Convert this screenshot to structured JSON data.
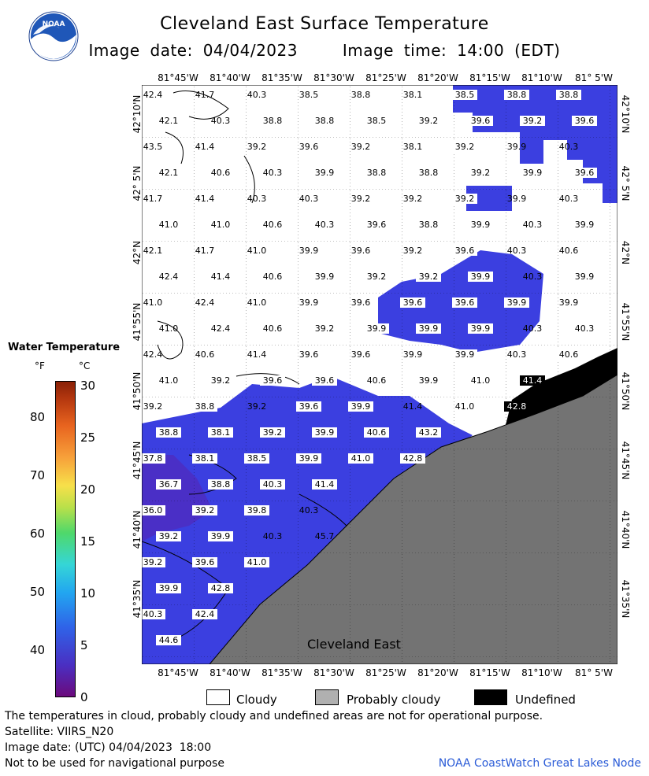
{
  "header": {
    "title": "Cleveland East Surface Temperature",
    "image_date": "Image date: 04/04/2023",
    "image_time": "Image time: 14:00 (EDT)"
  },
  "logo": {
    "text": "NOAA"
  },
  "map": {
    "region_label": "Cleveland East",
    "lon_ticks": [
      "81°45'W",
      "81°40'W",
      "81°35'W",
      "81°30'W",
      "81°25'W",
      "81°20'W",
      "81°15'W",
      "81°10'W",
      "81° 5'W"
    ],
    "lat_ticks": [
      "42°10'N",
      "42° 5'N",
      "42°N",
      "41°55'N",
      "41°50'N",
      "41°45'N",
      "41°40'N",
      "41°35'N"
    ],
    "colors": {
      "water": "#3b3fe0",
      "land": "#737373",
      "cloud": "#ffffff",
      "undefined": "#000000"
    },
    "temperatures": [
      {
        "v": "42.4"
      },
      {
        "v": "41.7"
      },
      {
        "v": "40.3"
      },
      {
        "v": "38.5"
      },
      {
        "v": "38.8"
      },
      {
        "v": "38.1"
      },
      {
        "v": "38.5",
        "box": 1
      },
      {
        "v": "38.8",
        "box": 1
      },
      {
        "v": "38.8",
        "box": 1
      },
      {
        "v": "42.1"
      },
      {
        "v": "40.3"
      },
      {
        "v": "38.8"
      },
      {
        "v": "38.8"
      },
      {
        "v": "38.5"
      },
      {
        "v": "39.2"
      },
      {
        "v": "39.6",
        "box": 1
      },
      {
        "v": "39.2",
        "box": 1
      },
      {
        "v": "39.6",
        "box": 1
      },
      {
        "v": "43.5"
      },
      {
        "v": "41.4"
      },
      {
        "v": "39.2"
      },
      {
        "v": "39.6"
      },
      {
        "v": "39.2"
      },
      {
        "v": "38.1"
      },
      {
        "v": "39.2",
        "box": 1
      },
      {
        "v": "39.9"
      },
      {
        "v": "40.3"
      },
      {
        "v": "42.1"
      },
      {
        "v": "40.6"
      },
      {
        "v": "40.3"
      },
      {
        "v": "39.9"
      },
      {
        "v": "38.8"
      },
      {
        "v": "38.8"
      },
      {
        "v": "39.2"
      },
      {
        "v": "39.9"
      },
      {
        "v": "39.6",
        "box": 1
      },
      {
        "v": "41.7"
      },
      {
        "v": "41.4"
      },
      {
        "v": "40.3"
      },
      {
        "v": "40.3"
      },
      {
        "v": "39.2"
      },
      {
        "v": "39.2"
      },
      {
        "v": "39.2",
        "box": 1
      },
      {
        "v": "39.9"
      },
      {
        "v": "40.3"
      },
      {
        "v": "41.0"
      },
      {
        "v": "41.0"
      },
      {
        "v": "40.6"
      },
      {
        "v": "40.3"
      },
      {
        "v": "39.6"
      },
      {
        "v": "38.8"
      },
      {
        "v": "39.9"
      },
      {
        "v": "40.3"
      },
      {
        "v": "39.9"
      },
      {
        "v": "42.1"
      },
      {
        "v": "41.7"
      },
      {
        "v": "41.0"
      },
      {
        "v": "39.9"
      },
      {
        "v": "39.6"
      },
      {
        "v": "39.2"
      },
      {
        "v": "39.6",
        "box": 1
      },
      {
        "v": "40.3"
      },
      {
        "v": "40.6"
      },
      {
        "v": "42.4"
      },
      {
        "v": "41.4"
      },
      {
        "v": "40.6"
      },
      {
        "v": "39.9"
      },
      {
        "v": "39.2",
        "box": 1
      },
      {
        "v": "39.2",
        "box": 1
      },
      {
        "v": "39.9",
        "box": 1
      },
      {
        "v": "40.3"
      },
      {
        "v": "39.9"
      },
      {
        "v": "41.0"
      },
      {
        "v": "42.4"
      },
      {
        "v": "41.0"
      },
      {
        "v": "39.9"
      },
      {
        "v": "39.6"
      },
      {
        "v": "39.6",
        "box": 1
      },
      {
        "v": "39.6",
        "box": 1
      },
      {
        "v": "39.9",
        "box": 1
      },
      {
        "v": "39.9"
      },
      {
        "v": "41.0"
      },
      {
        "v": "42.4"
      },
      {
        "v": "40.6"
      },
      {
        "v": "39.2"
      },
      {
        "v": "39.9",
        "box": 1
      },
      {
        "v": "39.9",
        "box": 1
      },
      {
        "v": "39.9",
        "box": 1
      },
      {
        "v": "40.3"
      },
      {
        "v": "40.3"
      },
      {
        "v": "42.4"
      },
      {
        "v": "40.6"
      },
      {
        "v": "41.4"
      },
      {
        "v": "39.6"
      },
      {
        "v": "39.6"
      },
      {
        "v": "39.9"
      },
      {
        "v": "39.9",
        "box": 1
      },
      {
        "v": "40.3"
      },
      {
        "v": "40.6",
        "box": 1
      },
      {
        "v": "41.0"
      },
      {
        "v": "39.2"
      },
      {
        "v": "39.6",
        "box": 1
      },
      {
        "v": "39.6",
        "box": 1
      },
      {
        "v": "40.6",
        "box": 1
      },
      {
        "v": "39.9"
      },
      {
        "v": "41.0"
      },
      {
        "v": "41.4",
        "box": 2
      },
      {
        "v": "39.2"
      },
      {
        "v": "38.8",
        "box": 1
      },
      {
        "v": "39.2"
      },
      {
        "v": "39.6",
        "box": 1
      },
      {
        "v": "39.9",
        "box": 1
      },
      {
        "v": "41.4"
      },
      {
        "v": "41.0"
      },
      {
        "v": "42.8",
        "box": 2
      },
      {
        "v": "38.8",
        "box": 1
      },
      {
        "v": "38.1",
        "box": 1
      },
      {
        "v": "39.2",
        "box": 1
      },
      {
        "v": "39.9",
        "box": 1
      },
      {
        "v": "40.6",
        "box": 1
      },
      {
        "v": "43.2",
        "box": 1
      },
      {
        "v": "37.8",
        "box": 1
      },
      {
        "v": "38.1",
        "box": 1
      },
      {
        "v": "38.5",
        "box": 1
      },
      {
        "v": "39.9",
        "box": 1
      },
      {
        "v": "41.0",
        "box": 1
      },
      {
        "v": "42.8",
        "box": 1
      },
      {
        "v": "36.7",
        "box": 1
      },
      {
        "v": "38.8",
        "box": 1
      },
      {
        "v": "40.3",
        "box": 1
      },
      {
        "v": "41.4",
        "box": 1
      },
      {
        "v": "36.0",
        "box": 1
      },
      {
        "v": "39.2",
        "box": 1
      },
      {
        "v": "39.8",
        "box": 1
      },
      {
        "v": "40.3"
      },
      {
        "v": "39.2",
        "box": 1
      },
      {
        "v": "39.9",
        "box": 1
      },
      {
        "v": "40.3"
      },
      {
        "v": "45.7"
      },
      {
        "v": "39.2",
        "box": 1
      },
      {
        "v": "39.6",
        "box": 1
      },
      {
        "v": "41.0",
        "box": 1
      },
      {
        "v": "39.9",
        "box": 1
      },
      {
        "v": "42.8",
        "box": 1
      },
      {
        "v": "40.3",
        "box": 1
      },
      {
        "v": "42.4",
        "box": 1
      },
      {
        "v": "44.6",
        "box": 1
      }
    ]
  },
  "colorbar": {
    "title": "Water Temperature",
    "unit_f": "°F",
    "unit_c": "°C",
    "f_ticks": [
      "80",
      "70",
      "60",
      "50",
      "40"
    ],
    "c_ticks": [
      "30",
      "25",
      "20",
      "15",
      "10",
      "5",
      "0"
    ]
  },
  "legend": {
    "cloudy": "Cloudy",
    "probably_cloudy": "Probably cloudy",
    "undefined": "Undefined"
  },
  "footer": {
    "disclaimer": "The temperatures in cloud, probably cloudy and undefined areas are not for operational purpose.",
    "satellite": "Satellite: VIIRS_N20",
    "utc_date": "Image date: (UTC) 04/04/2023  18:00",
    "nav": "Not to be used for navigational purpose",
    "credit": "NOAA CoastWatch Great Lakes Node"
  }
}
